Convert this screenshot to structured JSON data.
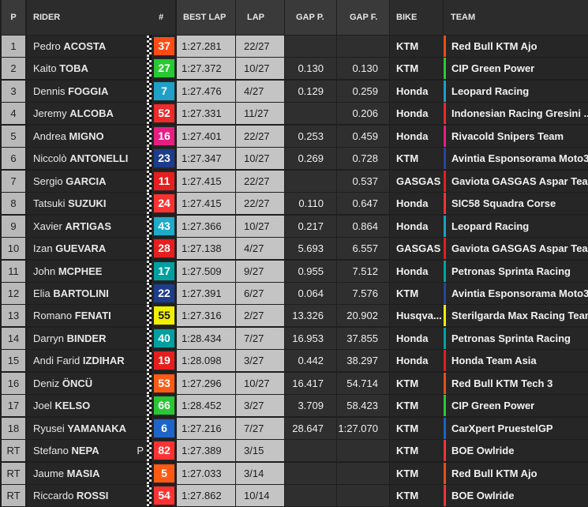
{
  "headers": {
    "pos": "P",
    "rider": "RIDER",
    "num": "#",
    "best_lap": "BEST LAP",
    "lap": "LAP",
    "gap_p": "GAP P.",
    "gap_f": "GAP F.",
    "bike": "BIKE",
    "team": "TEAM"
  },
  "rows": [
    {
      "pos": "1",
      "first": "Pedro",
      "last": "ACOSTA",
      "num": "37",
      "num_color": "#ff4b14",
      "best": "1:27.281",
      "lap": "22/27",
      "gap_p": "",
      "gap_f": "",
      "bike": "KTM",
      "team": "Red Bull KTM Ajo",
      "team_color": "#e8501a",
      "flag": ""
    },
    {
      "pos": "2",
      "first": "Kaito",
      "last": "TOBA",
      "num": "27",
      "num_color": "#28c832",
      "best": "1:27.372",
      "lap": "10/27",
      "gap_p": "0.130",
      "gap_f": "0.130",
      "bike": "KTM",
      "team": "CIP Green Power",
      "team_color": "#2ec83a",
      "flag": ""
    },
    {
      "pos": "3",
      "first": "Dennis",
      "last": "FOGGIA",
      "num": "7",
      "num_color": "#1ea0c8",
      "best": "1:27.476",
      "lap": "4/27",
      "gap_p": "0.129",
      "gap_f": "0.259",
      "bike": "Honda",
      "team": "Leopard Racing",
      "team_color": "#1ea0c8",
      "flag": ""
    },
    {
      "pos": "4",
      "first": "Jeremy",
      "last": "ALCOBA",
      "num": "52",
      "num_color": "#ee2a2a",
      "best": "1:27.331",
      "lap": "11/27",
      "gap_p": "",
      "gap_f": "0.206",
      "bike": "Honda",
      "team": "Indonesian Racing Gresini ...",
      "team_color": "#ee2a2a",
      "flag": ""
    },
    {
      "pos": "5",
      "first": "Andrea",
      "last": "MIGNO",
      "num": "16",
      "num_color": "#e61e82",
      "best": "1:27.401",
      "lap": "22/27",
      "gap_p": "0.253",
      "gap_f": "0.459",
      "bike": "Honda",
      "team": "Rivacold Snipers Team",
      "team_color": "#e61e82",
      "flag": ""
    },
    {
      "pos": "6",
      "first": "Niccolò",
      "last": "ANTONELLI",
      "num": "23",
      "num_color": "#1e3c8c",
      "best": "1:27.347",
      "lap": "10/27",
      "gap_p": "0.269",
      "gap_f": "0.728",
      "bike": "KTM",
      "team": "Avintia Esponsorama Moto3",
      "team_color": "#2846a0",
      "flag": ""
    },
    {
      "pos": "7",
      "first": "Sergio",
      "last": "GARCIA",
      "num": "11",
      "num_color": "#e61e1e",
      "best": "1:27.415",
      "lap": "22/27",
      "gap_p": "",
      "gap_f": "0.537",
      "bike": "GASGAS",
      "team": "Gaviota GASGAS Aspar Team",
      "team_color": "#e61e1e",
      "flag": ""
    },
    {
      "pos": "8",
      "first": "Tatsuki",
      "last": "SUZUKI",
      "num": "24",
      "num_color": "#ff3232",
      "best": "1:27.415",
      "lap": "22/27",
      "gap_p": "0.110",
      "gap_f": "0.647",
      "bike": "Honda",
      "team": "SIC58 Squadra Corse",
      "team_color": "#ff3232",
      "flag": ""
    },
    {
      "pos": "9",
      "first": "Xavier",
      "last": "ARTIGAS",
      "num": "43",
      "num_color": "#1eaac8",
      "best": "1:27.366",
      "lap": "10/27",
      "gap_p": "0.217",
      "gap_f": "0.864",
      "bike": "Honda",
      "team": "Leopard Racing",
      "team_color": "#1ea0c8",
      "flag": ""
    },
    {
      "pos": "10",
      "first": "Izan",
      "last": "GUEVARA",
      "num": "28",
      "num_color": "#e61e1e",
      "best": "1:27.138",
      "lap": "4/27",
      "gap_p": "5.693",
      "gap_f": "6.557",
      "bike": "GASGAS",
      "team": "Gaviota GASGAS Aspar Team",
      "team_color": "#e61e1e",
      "flag": ""
    },
    {
      "pos": "11",
      "first": "John",
      "last": "MCPHEE",
      "num": "17",
      "num_color": "#00a0a0",
      "best": "1:27.509",
      "lap": "9/27",
      "gap_p": "0.955",
      "gap_f": "7.512",
      "bike": "Honda",
      "team": "Petronas Sprinta Racing",
      "team_color": "#00a6a0",
      "flag": ""
    },
    {
      "pos": "12",
      "first": "Elia",
      "last": "BARTOLINI",
      "num": "22",
      "num_color": "#1e3c8c",
      "best": "1:27.391",
      "lap": "6/27",
      "gap_p": "0.064",
      "gap_f": "7.576",
      "bike": "KTM",
      "team": "Avintia Esponsorama Moto3",
      "team_color": "#2846a0",
      "flag": ""
    },
    {
      "pos": "13",
      "first": "Romano",
      "last": "FENATI",
      "num": "55",
      "num_color": "#f0f000",
      "best": "1:27.316",
      "lap": "2/27",
      "gap_p": "13.326",
      "gap_f": "20.902",
      "bike": "Husqva...",
      "team": "Sterilgarda Max Racing Team",
      "team_color": "#f0f000",
      "flag": ""
    },
    {
      "pos": "14",
      "first": "Darryn",
      "last": "BINDER",
      "num": "40",
      "num_color": "#00a0a0",
      "best": "1:28.434",
      "lap": "7/27",
      "gap_p": "16.953",
      "gap_f": "37.855",
      "bike": "Honda",
      "team": "Petronas Sprinta Racing",
      "team_color": "#00a6a0",
      "flag": ""
    },
    {
      "pos": "15",
      "first": "Andi Farid",
      "last": "IZDIHAR",
      "num": "19",
      "num_color": "#e61e1e",
      "best": "1:28.098",
      "lap": "3/27",
      "gap_p": "0.442",
      "gap_f": "38.297",
      "bike": "Honda",
      "team": "Honda Team Asia",
      "team_color": "#e61e1e",
      "flag": ""
    },
    {
      "pos": "16",
      "first": "Deniz",
      "last": "ÖNCÜ",
      "num": "53",
      "num_color": "#ff5a14",
      "best": "1:27.296",
      "lap": "10/27",
      "gap_p": "16.417",
      "gap_f": "54.714",
      "bike": "KTM",
      "team": "Red Bull KTM Tech 3",
      "team_color": "#e8501a",
      "flag": ""
    },
    {
      "pos": "17",
      "first": "Joel",
      "last": "KELSO",
      "num": "66",
      "num_color": "#28c832",
      "best": "1:28.452",
      "lap": "3/27",
      "gap_p": "3.709",
      "gap_f": "58.423",
      "bike": "KTM",
      "team": "CIP Green Power",
      "team_color": "#2ec83a",
      "flag": ""
    },
    {
      "pos": "18",
      "first": "Ryusei",
      "last": "YAMANAKA",
      "num": "6",
      "num_color": "#1e64c8",
      "best": "1:27.216",
      "lap": "7/27",
      "gap_p": "28.647",
      "gap_f": "1:27.070",
      "bike": "KTM",
      "team": "CarXpert PruestelGP",
      "team_color": "#1e64c8",
      "flag": ""
    },
    {
      "pos": "RT",
      "first": "Stefano",
      "last": "NEPA",
      "num": "82",
      "num_color": "#ff3232",
      "best": "1:27.389",
      "lap": "3/15",
      "gap_p": "",
      "gap_f": "",
      "bike": "KTM",
      "team": "BOE Owlride",
      "team_color": "#ff3232",
      "flag": "P"
    },
    {
      "pos": "RT",
      "first": "Jaume",
      "last": "MASIA",
      "num": "5",
      "num_color": "#ff5a14",
      "best": "1:27.033",
      "lap": "3/14",
      "gap_p": "",
      "gap_f": "",
      "bike": "KTM",
      "team": "Red Bull KTM Ajo",
      "team_color": "#e8501a",
      "flag": ""
    },
    {
      "pos": "RT",
      "first": "Riccardo",
      "last": "ROSSI",
      "num": "54",
      "num_color": "#ff3232",
      "best": "1:27.862",
      "lap": "10/14",
      "gap_p": "",
      "gap_f": "",
      "bike": "KTM",
      "team": "BOE Owlride",
      "team_color": "#ff3232",
      "flag": ""
    }
  ]
}
